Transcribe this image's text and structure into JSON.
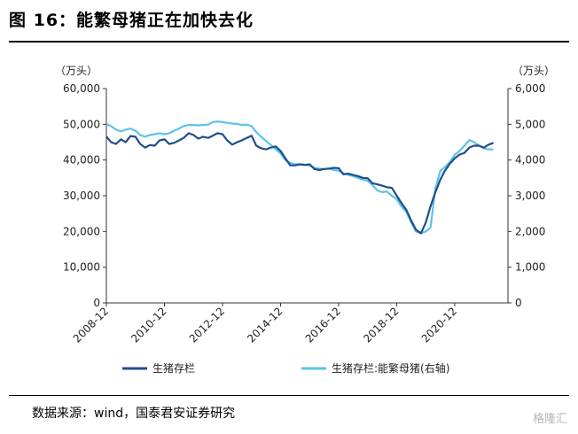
{
  "figure": {
    "title": "图 16：能繁母猪正在加快去化",
    "source": "数据来源：wind，国泰君安证券研究",
    "watermark": "格隆汇"
  },
  "chart_data": {
    "type": "line",
    "title": "图 16：能繁母猪正在加快去化",
    "left_unit": "（万头）",
    "right_unit": "（万头）",
    "y_left": {
      "min": 0,
      "max": 60000,
      "ticks": [
        "0",
        "10,000",
        "20,000",
        "30,000",
        "40,000",
        "50,000",
        "60,000"
      ]
    },
    "y_right": {
      "min": 0,
      "max": 6000,
      "ticks": [
        "0",
        "1,000",
        "2,000",
        "3,000",
        "4,000",
        "5,000",
        "6,000"
      ]
    },
    "x_range": [
      2008.917,
      2022.75
    ],
    "x_ticks": [
      {
        "label": "2008-12",
        "x": 2008.917
      },
      {
        "label": "2010-12",
        "x": 2010.917
      },
      {
        "label": "2012-12",
        "x": 2012.917
      },
      {
        "label": "2014-12",
        "x": 2014.917
      },
      {
        "label": "2016-12",
        "x": 2016.917
      },
      {
        "label": "2018-12",
        "x": 2018.917
      },
      {
        "label": "2020-12",
        "x": 2020.917
      }
    ],
    "grid": false,
    "legend_position": "bottom",
    "series": [
      {
        "name": "生猪存栏",
        "axis": "left",
        "color": "#1f4e8c",
        "points": [
          [
            2008.92,
            46500
          ],
          [
            2009.08,
            45000
          ],
          [
            2009.25,
            44500
          ],
          [
            2009.42,
            45800
          ],
          [
            2009.58,
            45000
          ],
          [
            2009.75,
            46700
          ],
          [
            2009.92,
            46500
          ],
          [
            2010.08,
            44500
          ],
          [
            2010.25,
            43500
          ],
          [
            2010.42,
            44200
          ],
          [
            2010.58,
            44000
          ],
          [
            2010.75,
            45500
          ],
          [
            2010.92,
            45800
          ],
          [
            2011.08,
            44500
          ],
          [
            2011.25,
            44800
          ],
          [
            2011.42,
            45500
          ],
          [
            2011.58,
            46200
          ],
          [
            2011.75,
            47500
          ],
          [
            2011.92,
            47000
          ],
          [
            2012.08,
            46000
          ],
          [
            2012.25,
            46500
          ],
          [
            2012.42,
            46200
          ],
          [
            2012.58,
            46800
          ],
          [
            2012.75,
            47500
          ],
          [
            2012.92,
            47200
          ],
          [
            2013.08,
            45500
          ],
          [
            2013.25,
            44300
          ],
          [
            2013.42,
            45000
          ],
          [
            2013.58,
            45500
          ],
          [
            2013.75,
            46200
          ],
          [
            2013.92,
            46800
          ],
          [
            2014.08,
            44000
          ],
          [
            2014.25,
            43300
          ],
          [
            2014.42,
            43000
          ],
          [
            2014.58,
            43500
          ],
          [
            2014.75,
            43800
          ],
          [
            2014.92,
            42500
          ],
          [
            2015.08,
            40500
          ],
          [
            2015.25,
            38500
          ],
          [
            2015.42,
            38500
          ],
          [
            2015.58,
            38800
          ],
          [
            2015.75,
            38600
          ],
          [
            2015.92,
            38800
          ],
          [
            2016.08,
            37500
          ],
          [
            2016.25,
            37200
          ],
          [
            2016.42,
            37500
          ],
          [
            2016.58,
            37600
          ],
          [
            2016.75,
            37800
          ],
          [
            2016.92,
            37700
          ],
          [
            2017.08,
            36000
          ],
          [
            2017.25,
            36200
          ],
          [
            2017.42,
            35800
          ],
          [
            2017.58,
            35500
          ],
          [
            2017.75,
            35000
          ],
          [
            2017.92,
            34900
          ],
          [
            2018.08,
            33500
          ],
          [
            2018.25,
            33200
          ],
          [
            2018.42,
            32800
          ],
          [
            2018.58,
            32400
          ],
          [
            2018.75,
            32200
          ],
          [
            2018.92,
            30000
          ],
          [
            2019.08,
            28000
          ],
          [
            2019.25,
            26000
          ],
          [
            2019.42,
            23000
          ],
          [
            2019.58,
            20500
          ],
          [
            2019.75,
            19500
          ],
          [
            2019.92,
            22500
          ],
          [
            2020.08,
            27000
          ],
          [
            2020.25,
            31000
          ],
          [
            2020.42,
            34500
          ],
          [
            2020.58,
            37000
          ],
          [
            2020.75,
            39000
          ],
          [
            2020.92,
            40500
          ],
          [
            2021.08,
            41500
          ],
          [
            2021.25,
            42000
          ],
          [
            2021.42,
            43500
          ],
          [
            2021.58,
            44000
          ],
          [
            2021.75,
            44000
          ],
          [
            2021.92,
            43500
          ],
          [
            2022.08,
            44300
          ],
          [
            2022.25,
            44800
          ]
        ]
      },
      {
        "name": "生猪存栏:能繁母猪(右轴)",
        "axis": "right",
        "color": "#5bc3ea",
        "points": [
          [
            2008.92,
            5000
          ],
          [
            2009.08,
            4950
          ],
          [
            2009.25,
            4850
          ],
          [
            2009.42,
            4800
          ],
          [
            2009.58,
            4850
          ],
          [
            2009.75,
            4880
          ],
          [
            2009.92,
            4820
          ],
          [
            2010.08,
            4700
          ],
          [
            2010.25,
            4650
          ],
          [
            2010.42,
            4700
          ],
          [
            2010.58,
            4720
          ],
          [
            2010.75,
            4750
          ],
          [
            2010.92,
            4720
          ],
          [
            2011.08,
            4750
          ],
          [
            2011.25,
            4820
          ],
          [
            2011.42,
            4880
          ],
          [
            2011.58,
            4950
          ],
          [
            2011.75,
            4980
          ],
          [
            2011.92,
            4980
          ],
          [
            2012.08,
            4970
          ],
          [
            2012.25,
            4980
          ],
          [
            2012.42,
            4990
          ],
          [
            2012.58,
            5060
          ],
          [
            2012.75,
            5080
          ],
          [
            2012.92,
            5060
          ],
          [
            2013.08,
            5040
          ],
          [
            2013.25,
            5020
          ],
          [
            2013.42,
            5010
          ],
          [
            2013.58,
            4980
          ],
          [
            2013.75,
            4990
          ],
          [
            2013.92,
            4950
          ],
          [
            2014.08,
            4780
          ],
          [
            2014.25,
            4650
          ],
          [
            2014.42,
            4530
          ],
          [
            2014.58,
            4420
          ],
          [
            2014.75,
            4300
          ],
          [
            2014.92,
            4180
          ],
          [
            2015.08,
            4000
          ],
          [
            2015.25,
            3920
          ],
          [
            2015.42,
            3880
          ],
          [
            2015.58,
            3880
          ],
          [
            2015.75,
            3870
          ],
          [
            2015.92,
            3850
          ],
          [
            2016.08,
            3780
          ],
          [
            2016.25,
            3760
          ],
          [
            2016.42,
            3750
          ],
          [
            2016.58,
            3760
          ],
          [
            2016.75,
            3720
          ],
          [
            2016.92,
            3700
          ],
          [
            2017.08,
            3630
          ],
          [
            2017.25,
            3580
          ],
          [
            2017.42,
            3550
          ],
          [
            2017.58,
            3500
          ],
          [
            2017.75,
            3450
          ],
          [
            2017.92,
            3420
          ],
          [
            2018.08,
            3300
          ],
          [
            2018.25,
            3150
          ],
          [
            2018.42,
            3100
          ],
          [
            2018.58,
            3120
          ],
          [
            2018.75,
            3000
          ],
          [
            2018.92,
            2900
          ],
          [
            2019.08,
            2700
          ],
          [
            2019.25,
            2550
          ],
          [
            2019.42,
            2250
          ],
          [
            2019.58,
            2000
          ],
          [
            2019.75,
            1950
          ],
          [
            2019.92,
            2000
          ],
          [
            2020.08,
            2100
          ],
          [
            2020.25,
            3200
          ],
          [
            2020.42,
            3700
          ],
          [
            2020.58,
            3800
          ],
          [
            2020.75,
            3950
          ],
          [
            2020.92,
            4150
          ],
          [
            2021.08,
            4250
          ],
          [
            2021.25,
            4400
          ],
          [
            2021.42,
            4560
          ],
          [
            2021.58,
            4500
          ],
          [
            2021.75,
            4400
          ],
          [
            2021.92,
            4330
          ],
          [
            2022.08,
            4300
          ],
          [
            2022.25,
            4300
          ]
        ]
      }
    ]
  }
}
